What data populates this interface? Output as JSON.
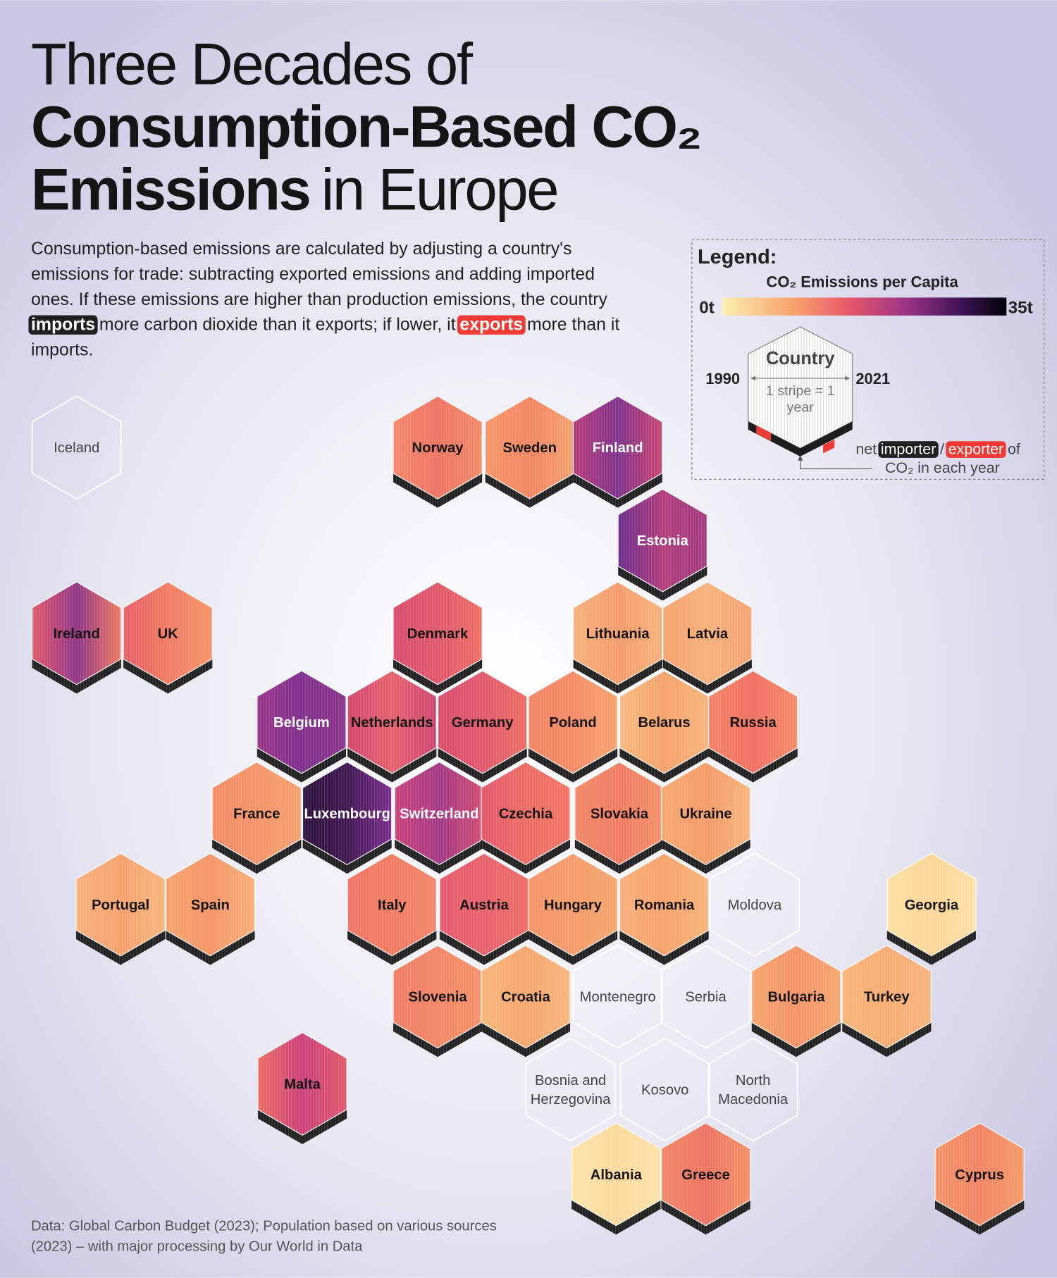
{
  "header": {
    "title": [
      [
        {
          "text": "Three Decades of"
        }
      ],
      [
        {
          "text": "Consumption-Based CO₂",
          "bold": true
        }
      ],
      [
        {
          "text": "Emissions",
          "bold": true
        },
        {
          "text": "in Europe"
        }
      ]
    ]
  },
  "intro": [
    [
      {
        "text": "Consumption-based emissions are calculated by adjusting a country's"
      }
    ],
    [
      {
        "text": "emissions for trade: subtracting exported emissions and adding imported"
      }
    ],
    [
      {
        "text": "ones. If these emissions are higher than production emissions, the country"
      }
    ],
    [
      {
        "text": "imports",
        "highlight": "#1f1f1f"
      },
      {
        "text": "more carbon dioxide than it exports; if lower, it"
      },
      {
        "text": "exports",
        "highlight": "#ef3b36"
      },
      {
        "text": "more than it"
      }
    ],
    [
      {
        "text": "imports."
      }
    ]
  ],
  "legend": {
    "title": "Legend:",
    "scale_title": "CO₂ Emissions per Capita",
    "scale_min": "0t",
    "scale_max": "35t",
    "example_country": "Country",
    "start_year": "1990",
    "end_year": "2021",
    "stripe_note": [
      "1 stripe = 1",
      "year"
    ],
    "note": [
      [
        {
          "text": "net"
        },
        {
          "text": "importer",
          "highlight": "#1f1f1f"
        },
        {
          "text": "/"
        },
        {
          "text": "exporter",
          "highlight": "#ef3b36"
        },
        {
          "text": "of"
        }
      ],
      [
        {
          "text": "CO₂ in each year"
        }
      ]
    ]
  },
  "countries": [
    {
      "name": "Iceland"
    },
    {
      "name": "Norway",
      "colors": [
        "#f4866a",
        "#ee7260",
        "#f08a66"
      ]
    },
    {
      "name": "Sweden",
      "colors": [
        "#f69566",
        "#f3845f",
        "#f2a070"
      ]
    },
    {
      "name": "Finland",
      "colors": [
        "#b8387a",
        "#7d2f8a",
        "#c94470"
      ],
      "label": "light"
    },
    {
      "name": "Estonia",
      "colors": [
        "#6a2a8c",
        "#b03a7a",
        "#a0387e"
      ],
      "label": "light"
    },
    {
      "name": "Ireland",
      "colors": [
        "#e4566a",
        "#8e3384",
        "#f07a60"
      ]
    },
    {
      "name": "UK",
      "colors": [
        "#e65c66",
        "#f07a60",
        "#f49266"
      ]
    },
    {
      "name": "Denmark",
      "colors": [
        "#d84a6a",
        "#e0566a",
        "#ec6c62"
      ]
    },
    {
      "name": "Lithuania",
      "colors": [
        "#f7b07a",
        "#f59a6a",
        "#f8b07a"
      ]
    },
    {
      "name": "Latvia",
      "colors": [
        "#f5a06a",
        "#f8b07a",
        "#f5a070"
      ]
    },
    {
      "name": "Belgium",
      "colors": [
        "#9a3288",
        "#7d2d8a",
        "#8a3088"
      ],
      "label": "light"
    },
    {
      "name": "Netherlands",
      "colors": [
        "#d2446c",
        "#e4606a",
        "#cc4470"
      ]
    },
    {
      "name": "Germany",
      "colors": [
        "#d84c6a",
        "#e0566a",
        "#ec6c60"
      ]
    },
    {
      "name": "Poland",
      "colors": [
        "#f28262",
        "#f48a64",
        "#f6a26c"
      ]
    },
    {
      "name": "Belarus",
      "colors": [
        "#f8b87e",
        "#f6a06a",
        "#f7b47a"
      ]
    },
    {
      "name": "Russia",
      "colors": [
        "#f28264",
        "#f06e5e",
        "#f48a66"
      ]
    },
    {
      "name": "France",
      "colors": [
        "#f28a64",
        "#f49266",
        "#f5a06c"
      ]
    },
    {
      "name": "Luxembourg",
      "colors": [
        "#2a0f3a",
        "#3d1450",
        "#7a2c8c"
      ],
      "label": "light"
    },
    {
      "name": "Switzerland",
      "colors": [
        "#c9407a",
        "#a23684",
        "#d04a70"
      ],
      "label": "light"
    },
    {
      "name": "Czechia",
      "colors": [
        "#e4566a",
        "#ec6a62",
        "#f07462"
      ]
    },
    {
      "name": "Slovakia",
      "colors": [
        "#f28464",
        "#f07a60",
        "#f49066"
      ]
    },
    {
      "name": "Ukraine",
      "colors": [
        "#f6a86e",
        "#f49a68",
        "#f8b47a"
      ]
    },
    {
      "name": "Portugal",
      "colors": [
        "#f8b07a",
        "#f6a06c",
        "#f8b47c"
      ]
    },
    {
      "name": "Spain",
      "colors": [
        "#f6a26c",
        "#f49466",
        "#f8ae78"
      ]
    },
    {
      "name": "Italy",
      "colors": [
        "#ef7462",
        "#f07a60",
        "#f28464"
      ]
    },
    {
      "name": "Austria",
      "colors": [
        "#e4586a",
        "#e8606a",
        "#ec6a62"
      ]
    },
    {
      "name": "Hungary",
      "colors": [
        "#f49266",
        "#f49a68",
        "#f6a46c"
      ]
    },
    {
      "name": "Romania",
      "colors": [
        "#f8ae78",
        "#f6a06a",
        "#f8b47a"
      ]
    },
    {
      "name": "Moldova"
    },
    {
      "name": "Georgia",
      "colors": [
        "#fde0a2",
        "#fbd498",
        "#fce0a4"
      ]
    },
    {
      "name": "Slovenia",
      "colors": [
        "#f07c62",
        "#f28464",
        "#f49066"
      ]
    },
    {
      "name": "Croatia",
      "colors": [
        "#f8b47a",
        "#f6a46c",
        "#f8b47c"
      ]
    },
    {
      "name": "Montenegro"
    },
    {
      "name": "Serbia"
    },
    {
      "name": "Bulgaria",
      "colors": [
        "#f6a26c",
        "#f49266",
        "#f6a46e"
      ]
    },
    {
      "name": "Turkey",
      "colors": [
        "#f8b47a",
        "#f6aa72",
        "#f8b47c"
      ]
    },
    {
      "name": "Malta",
      "colors": [
        "#ec6a62",
        "#c9407a",
        "#e0566a"
      ]
    },
    {
      "name": [
        "Bosnia and",
        "Herzegovina"
      ]
    },
    {
      "name": "Kosovo"
    },
    {
      "name": [
        "North",
        "Macedonia"
      ]
    },
    {
      "name": "Albania",
      "colors": [
        "#fde4a8",
        "#fbd89c",
        "#fce2a6"
      ]
    },
    {
      "name": "Greece",
      "colors": [
        "#f28464",
        "#ee7260",
        "#f49066"
      ]
    },
    {
      "name": "Cyprus",
      "colors": [
        "#f49266",
        "#f28262",
        "#f49a68"
      ]
    }
  ],
  "source": [
    "Data: Global Carbon Budget (2023); Population based on various sources",
    "(2023) – with major processing by Our World in Data"
  ]
}
